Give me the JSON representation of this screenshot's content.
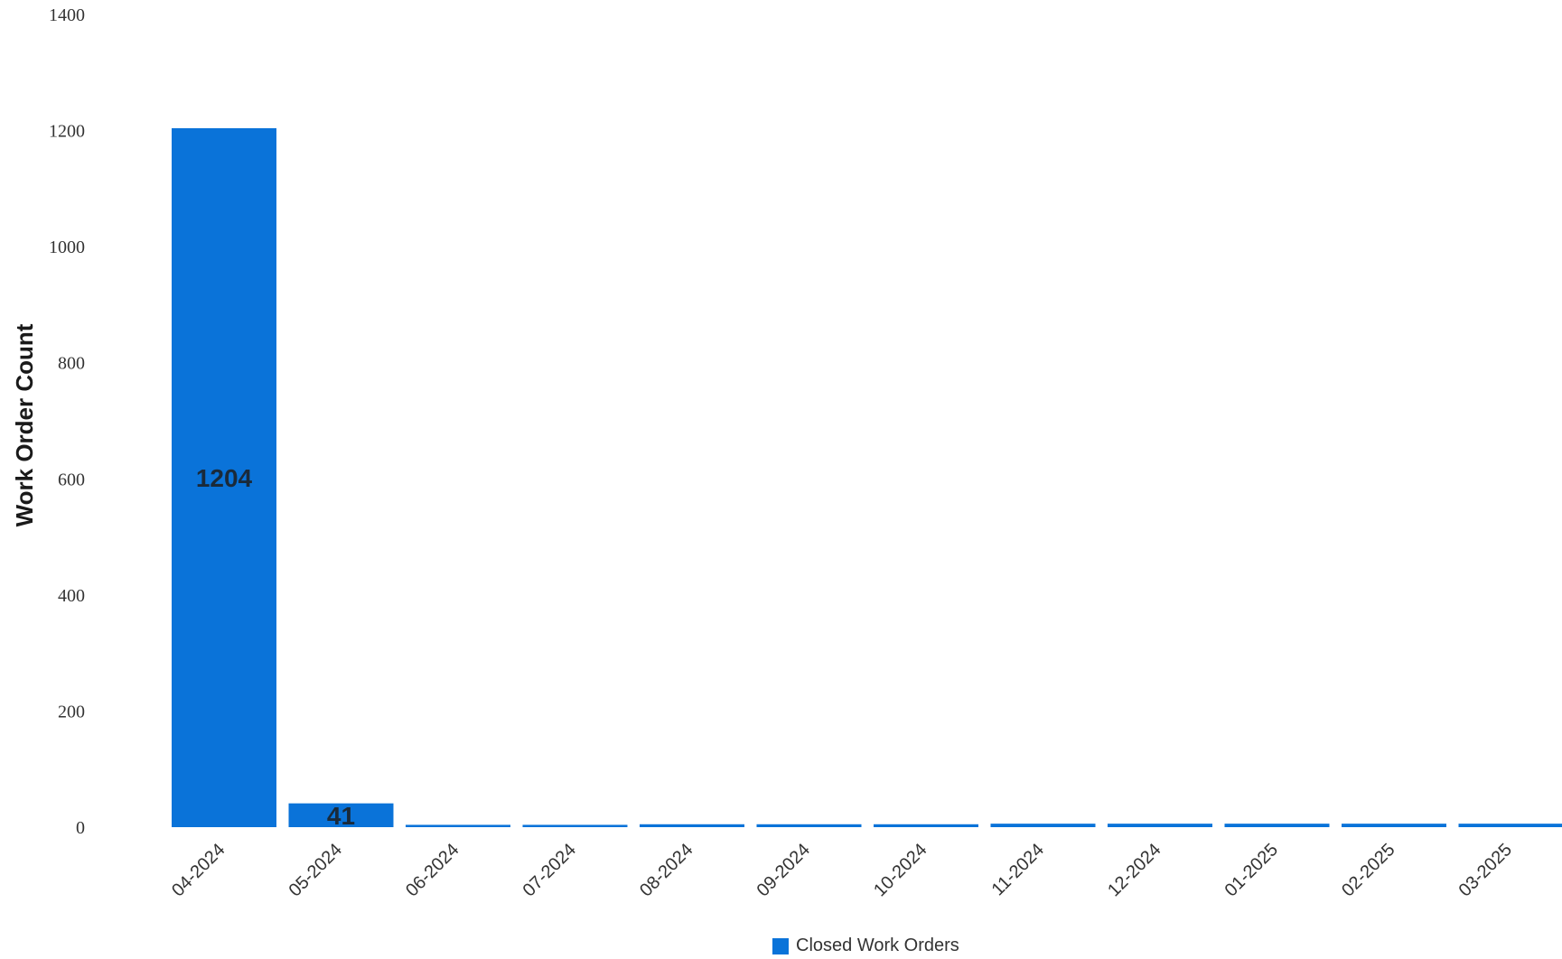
{
  "chart_data": {
    "type": "bar",
    "categories": [
      "04-2024",
      "05-2024",
      "06-2024",
      "07-2024",
      "08-2024",
      "09-2024",
      "10-2024",
      "11-2024",
      "12-2024",
      "01-2025",
      "02-2025",
      "03-2025"
    ],
    "series": [
      {
        "name": "Closed Work Orders",
        "values": [
          1204,
          41,
          4,
          4,
          5,
          5,
          5,
          6,
          6,
          6,
          6,
          6
        ],
        "data_labels": [
          "1204",
          "41",
          "",
          "",
          "",
          "",
          "",
          "",
          "",
          "",
          "",
          ""
        ]
      }
    ],
    "title": "",
    "xlabel": "",
    "ylabel": "Work Order Count",
    "ylim": [
      0,
      1400
    ],
    "yticks": [
      0,
      200,
      400,
      600,
      800,
      1000,
      1200,
      1400
    ],
    "grid": false,
    "legend_placement": "bottom-center",
    "bar_color": "#0a73d9"
  }
}
